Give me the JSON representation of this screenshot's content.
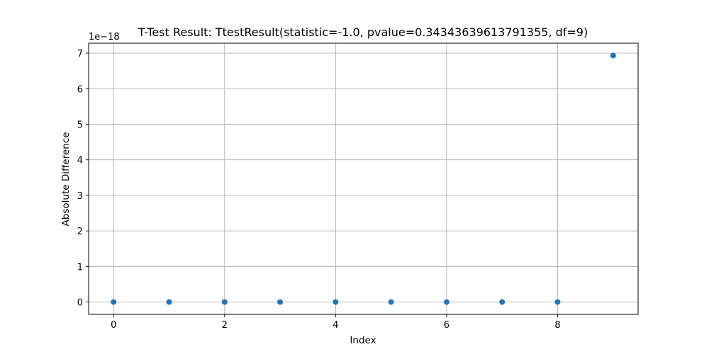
{
  "chart_data": {
    "type": "scatter",
    "title": "T-Test Result: TtestResult(statistic=-1.0, pvalue=0.34343639613791355, df=9)",
    "xlabel": "Index",
    "ylabel": "Absolute Difference",
    "y_offset_label": "1e−18",
    "xlim": [
      -0.45,
      9.45
    ],
    "ylim": [
      -0.3467,
      7.2804
    ],
    "x_ticks": [
      0,
      2,
      4,
      6,
      8
    ],
    "x_tick_labels": [
      "0",
      "2",
      "4",
      "6",
      "8"
    ],
    "y_ticks": [
      0,
      1,
      2,
      3,
      4,
      5,
      6,
      7
    ],
    "y_tick_labels": [
      "0",
      "1",
      "2",
      "3",
      "4",
      "5",
      "6",
      "7"
    ],
    "grid": true,
    "marker_color": "#1f77b4",
    "series": [
      {
        "x": [
          0,
          1,
          2,
          3,
          4,
          5,
          6,
          7,
          8,
          9
        ],
        "y": [
          0,
          0,
          0,
          0,
          0,
          0,
          0,
          0,
          0,
          6.9334
        ]
      }
    ]
  }
}
